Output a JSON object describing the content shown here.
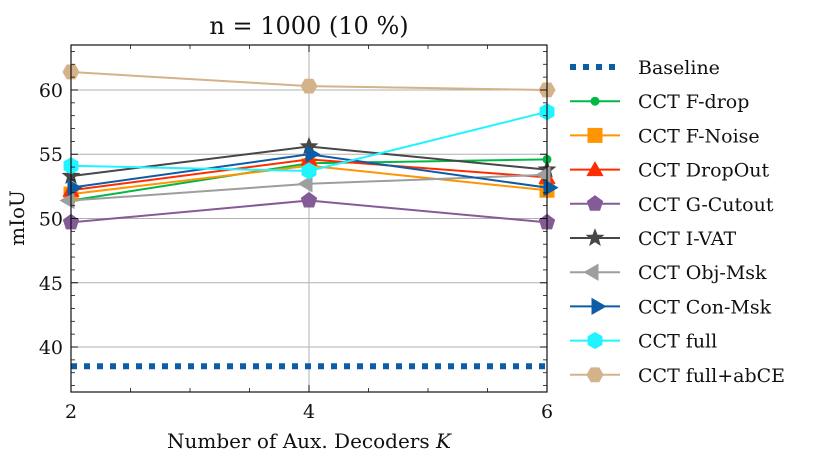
{
  "chart_data": {
    "type": "line",
    "title": "n = 1000 (10 %)",
    "xlabel": "Number of Aux. Decoders",
    "xlabel_symbol": "K",
    "ylabel": "mIoU",
    "x": [
      2,
      4,
      6
    ],
    "xlim": [
      2,
      6
    ],
    "ylim": [
      36.5,
      63.5
    ],
    "xticks": [
      "2",
      "4",
      "6"
    ],
    "yticks": [
      "40",
      "45",
      "50",
      "55",
      "60"
    ],
    "grid": true,
    "legend_position": "outside-right",
    "series": [
      {
        "name": "Baseline",
        "values": [
          38.5,
          38.5,
          38.5
        ],
        "color": "#0c5da5",
        "marker": "none",
        "dash": "dotted"
      },
      {
        "name": "CCT F-drop",
        "values": [
          51.4,
          54.3,
          54.6
        ],
        "color": "#00b945",
        "marker": "circle"
      },
      {
        "name": "CCT F-Noise",
        "values": [
          51.9,
          54.1,
          52.2
        ],
        "color": "#ff9500",
        "marker": "square"
      },
      {
        "name": "CCT DropOut",
        "values": [
          52.2,
          54.6,
          53.2
        ],
        "color": "#ff2c00",
        "marker": "triangle"
      },
      {
        "name": "CCT G-Cutout",
        "values": [
          49.7,
          51.4,
          49.7
        ],
        "color": "#845b97",
        "marker": "pentagon"
      },
      {
        "name": "CCT I-VAT",
        "values": [
          53.3,
          55.6,
          53.8
        ],
        "color": "#474747",
        "marker": "star"
      },
      {
        "name": "CCT Obj-Msk",
        "values": [
          51.4,
          52.7,
          53.4
        ],
        "color": "#9e9e9e",
        "marker": "triangle-left"
      },
      {
        "name": "CCT Con-Msk",
        "values": [
          52.4,
          55.0,
          52.4
        ],
        "color": "#0c5da5",
        "marker": "triangle-right"
      },
      {
        "name": "CCT full",
        "values": [
          54.1,
          53.7,
          58.3
        ],
        "color": "#1ff4ff",
        "marker": "hexagon"
      },
      {
        "name": "CCT full+abCE",
        "values": [
          61.4,
          60.3,
          60.0
        ],
        "color": "#d4b38a",
        "marker": "hexagon-flat"
      }
    ]
  }
}
